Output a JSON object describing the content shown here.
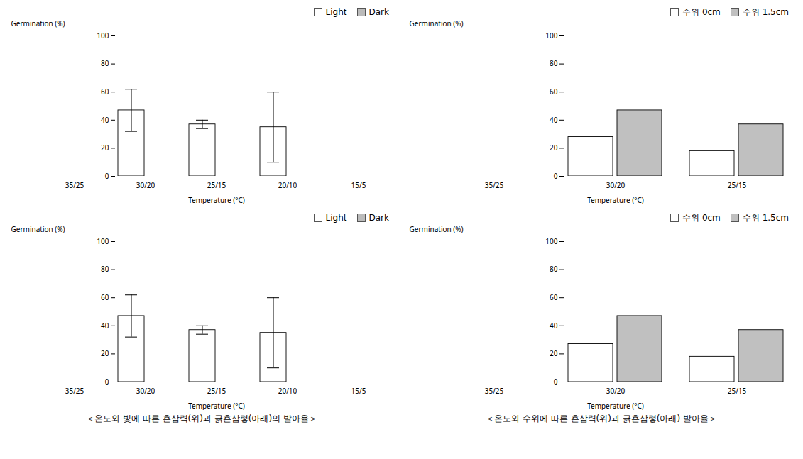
{
  "chart_data": [
    {
      "type": "bar",
      "categories": [
        "35/25",
        "30/20",
        "25/15",
        "20/10",
        "15/5"
      ],
      "series": [
        {
          "name": "Light",
          "color": "#ffffff",
          "values": [
            0,
            47,
            37,
            35,
            0
          ],
          "errors": [
            0,
            15,
            3,
            25,
            0
          ]
        },
        {
          "name": "Dark",
          "color": "#bbbbbb",
          "values": [
            0,
            0,
            0,
            0,
            0
          ],
          "errors": [
            0,
            0,
            0,
            0,
            0
          ]
        }
      ],
      "xlabel": "Temperature (°C)",
      "ylabel": "Germination (%)",
      "ylim": [
        0,
        100
      ],
      "yticks": [
        0,
        20,
        40,
        60,
        80,
        100
      ],
      "legend": "upper right"
    },
    {
      "type": "bar",
      "categories": [
        "35/25",
        "30/20",
        "25/15"
      ],
      "series": [
        {
          "name": "수위 0cm",
          "color": "#ffffff",
          "values": [
            0,
            28,
            18
          ]
        },
        {
          "name": "수위 1.5cm",
          "color": "#c0c0c0",
          "values": [
            0,
            47,
            37
          ]
        }
      ],
      "xlabel": "Temperature (°C)",
      "ylabel": "Germination (%)",
      "ylim": [
        0,
        100
      ],
      "yticks": [
        0,
        20,
        40,
        60,
        80,
        100
      ],
      "legend": "upper right"
    },
    {
      "type": "bar",
      "categories": [
        "35/25",
        "30/20",
        "25/15",
        "20/10",
        "15/5"
      ],
      "series": [
        {
          "name": "Light",
          "color": "#ffffff",
          "values": [
            0,
            47,
            37,
            35,
            0
          ],
          "errors": [
            0,
            15,
            3,
            25,
            0
          ]
        },
        {
          "name": "Dark",
          "color": "#bbbbbb",
          "values": [
            0,
            0,
            0,
            0,
            0
          ],
          "errors": [
            0,
            0,
            0,
            0,
            0
          ]
        }
      ],
      "xlabel": "Temperature (°C)",
      "ylabel": "Germination (%)",
      "ylim": [
        0,
        100
      ],
      "yticks": [
        0,
        20,
        40,
        60,
        80,
        100
      ],
      "legend": "upper right",
      "caption": "＜온도와 빛에 따른 흔삼력(위)과 긁흔삼렇(아래)의 발아율＞"
    },
    {
      "type": "bar",
      "categories": [
        "35/25",
        "30/20",
        "25/15"
      ],
      "series": [
        {
          "name": "수위 0cm",
          "color": "#ffffff",
          "values": [
            0,
            27,
            18
          ]
        },
        {
          "name": "수위 1.5cm",
          "color": "#c0c0c0",
          "values": [
            0,
            47,
            37
          ]
        }
      ],
      "xlabel": "Temperature (°C)",
      "ylabel": "Germination (%)",
      "ylim": [
        0,
        100
      ],
      "yticks": [
        0,
        20,
        40,
        60,
        80,
        100
      ],
      "legend": "upper right",
      "caption": "＜온도와 수위에 따른 흔삼력(위)과 긁흔삼렇(아래) 발아율＞"
    }
  ]
}
